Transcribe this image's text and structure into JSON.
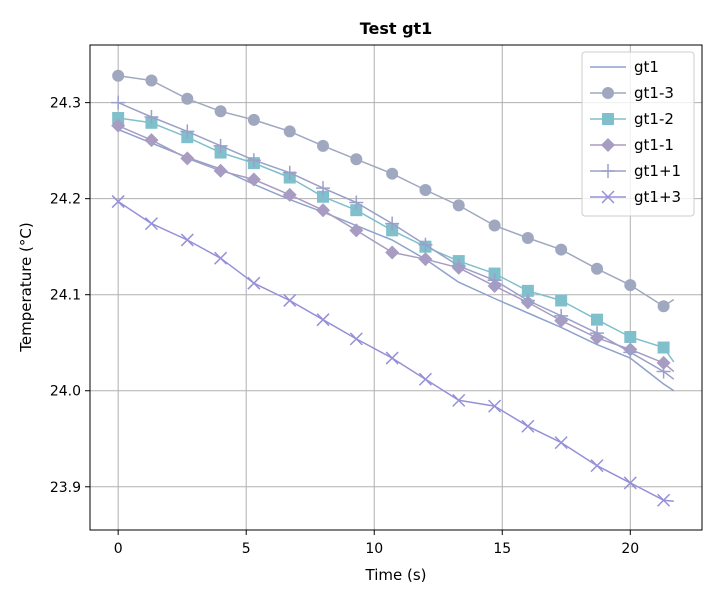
{
  "chart_data": {
    "type": "line",
    "title": "Test gt1",
    "xlabel": "Time (s)",
    "ylabel": "Temperature (°C)",
    "xlim": [
      -1.1,
      22.8
    ],
    "ylim": [
      23.855,
      24.36
    ],
    "xticks": [
      0,
      5,
      10,
      15,
      20
    ],
    "xtick_labels": [
      "0",
      "5",
      "10",
      "15",
      "20"
    ],
    "yticks": [
      23.9,
      24.0,
      24.1,
      24.2,
      24.3
    ],
    "ytick_labels": [
      "23.9",
      "24.0",
      "24.1",
      "24.2",
      "24.3"
    ],
    "grid": true,
    "legend_position": "upper right",
    "series": [
      {
        "name": "gt1",
        "color": "#8ea2cc",
        "marker": "none",
        "x": [
          0,
          1.3,
          2.7,
          4.0,
          5.3,
          6.7,
          8.0,
          9.3,
          10.7,
          12.0,
          13.3,
          14.7,
          16.0,
          17.3,
          18.7,
          20.0,
          21.3,
          21.7
        ],
        "y": [
          24.272,
          24.258,
          24.243,
          24.231,
          24.215,
          24.199,
          24.186,
          24.172,
          24.157,
          24.137,
          24.113,
          24.096,
          24.081,
          24.066,
          24.048,
          24.034,
          24.007,
          24.0
        ]
      },
      {
        "name": "gt1-3",
        "color": "#a0a8c0",
        "marker": "circle",
        "x": [
          0,
          1.3,
          2.7,
          4.0,
          5.3,
          6.7,
          8.0,
          9.3,
          10.7,
          12.0,
          13.3,
          14.7,
          16.0,
          17.3,
          18.7,
          20.0,
          21.3,
          21.7
        ],
        "y": [
          24.328,
          24.323,
          24.304,
          24.291,
          24.282,
          24.27,
          24.255,
          24.241,
          24.226,
          24.209,
          24.193,
          24.172,
          24.159,
          24.147,
          24.127,
          24.11,
          24.088,
          24.095
        ]
      },
      {
        "name": "gt1-2",
        "color": "#80bfcc",
        "marker": "square",
        "x": [
          0,
          1.3,
          2.7,
          4.0,
          5.3,
          6.7,
          8.0,
          9.3,
          10.7,
          12.0,
          13.3,
          14.7,
          16.0,
          17.3,
          18.7,
          20.0,
          21.3,
          21.7
        ],
        "y": [
          24.284,
          24.279,
          24.264,
          24.248,
          24.237,
          24.222,
          24.202,
          24.188,
          24.167,
          24.15,
          24.135,
          24.122,
          24.104,
          24.094,
          24.074,
          24.056,
          24.045,
          24.03
        ]
      },
      {
        "name": "gt1-1",
        "color": "#a89cc2",
        "marker": "diamond",
        "x": [
          0,
          1.3,
          2.7,
          4.0,
          5.3,
          6.7,
          8.0,
          9.3,
          10.7,
          12.0,
          13.3,
          14.7,
          16.0,
          17.3,
          18.7,
          20.0,
          21.3,
          21.7
        ],
        "y": [
          24.276,
          24.261,
          24.242,
          24.229,
          24.22,
          24.204,
          24.188,
          24.167,
          24.144,
          24.137,
          24.128,
          24.109,
          24.092,
          24.073,
          24.055,
          24.043,
          24.029,
          24.02
        ]
      },
      {
        "name": "gt1+1",
        "color": "#9aa0c8",
        "marker": "plus",
        "x": [
          0,
          1.3,
          2.7,
          4.0,
          5.3,
          6.7,
          8.0,
          9.3,
          10.7,
          12.0,
          13.3,
          14.7,
          16.0,
          17.3,
          18.7,
          20.0,
          21.3,
          21.7
        ],
        "y": [
          24.3,
          24.285,
          24.27,
          24.255,
          24.24,
          24.227,
          24.211,
          24.196,
          24.174,
          24.152,
          24.13,
          24.115,
          24.094,
          24.078,
          24.06,
          24.04,
          24.02,
          24.012
        ]
      },
      {
        "name": "gt1+3",
        "color": "#9590d8",
        "marker": "x",
        "x": [
          0,
          1.3,
          2.7,
          4.0,
          5.3,
          6.7,
          8.0,
          9.3,
          10.7,
          12.0,
          13.3,
          14.7,
          16.0,
          17.3,
          18.7,
          20.0,
          21.3,
          21.7
        ],
        "y": [
          24.197,
          24.174,
          24.157,
          24.138,
          24.112,
          24.094,
          24.074,
          24.054,
          24.034,
          24.012,
          23.99,
          23.984,
          23.963,
          23.946,
          23.922,
          23.904,
          23.886,
          23.885
        ]
      }
    ]
  }
}
